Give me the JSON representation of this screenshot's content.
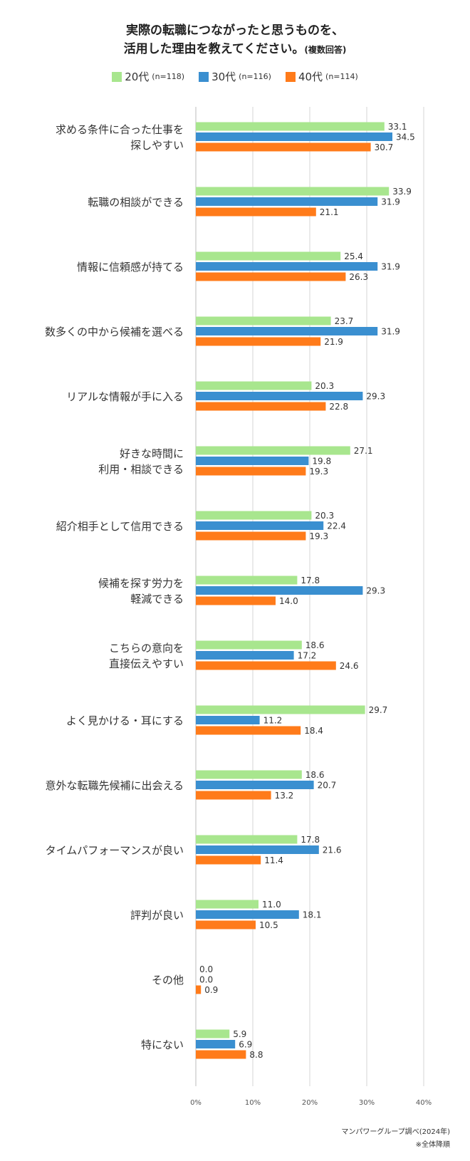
{
  "title_line1": "実際の転職につながったと思うものを、",
  "title_line2": "活用した理由を教えてください。",
  "title_suffix": "(複数回答)",
  "legend": [
    {
      "label": "20代",
      "n": "(n=118)",
      "color": "#a8e68e"
    },
    {
      "label": "30代",
      "n": "(n=116)",
      "color": "#3a8fd0"
    },
    {
      "label": "40代",
      "n": "(n=114)",
      "color": "#ff7b1a"
    }
  ],
  "source_line1": "マンパワーグループ調べ(2024年)",
  "source_line2": "※全体降順",
  "chart_data": {
    "type": "bar",
    "orientation": "horizontal",
    "categories": [
      [
        "求める条件に合った仕事を",
        "探しやすい"
      ],
      [
        "転職の相談ができる"
      ],
      [
        "情報に信頼感が持てる"
      ],
      [
        "数多くの中から候補を選べる"
      ],
      [
        "リアルな情報が手に入る"
      ],
      [
        "好きな時間に",
        "利用・相談できる"
      ],
      [
        "紹介相手として信用できる"
      ],
      [
        "候補を探す労力を",
        "軽減できる"
      ],
      [
        "こちらの意向を",
        "直接伝えやすい"
      ],
      [
        "よく見かける・耳にする"
      ],
      [
        "意外な転職先候補に出会える"
      ],
      [
        "タイムパフォーマンスが良い"
      ],
      [
        "評判が良い"
      ],
      [
        "その他"
      ],
      [
        "特にない"
      ]
    ],
    "series": [
      {
        "name": "20代",
        "color": "#a8e68e",
        "values": [
          33.1,
          33.9,
          25.4,
          23.7,
          20.3,
          27.1,
          20.3,
          17.8,
          18.6,
          29.7,
          18.6,
          17.8,
          11.0,
          0.0,
          5.9
        ]
      },
      {
        "name": "30代",
        "color": "#3a8fd0",
        "values": [
          34.5,
          31.9,
          31.9,
          31.9,
          29.3,
          19.8,
          22.4,
          29.3,
          17.2,
          11.2,
          20.7,
          21.6,
          18.1,
          0.0,
          6.9
        ]
      },
      {
        "name": "40代",
        "color": "#ff7b1a",
        "values": [
          30.7,
          21.1,
          26.3,
          21.9,
          22.8,
          19.3,
          19.3,
          14.0,
          24.6,
          18.4,
          13.2,
          11.4,
          10.5,
          0.9,
          8.8
        ]
      }
    ],
    "xlim": [
      0,
      40
    ],
    "xticks": [
      "0%",
      "10%",
      "20%",
      "30%",
      "40%"
    ],
    "grid": true
  }
}
